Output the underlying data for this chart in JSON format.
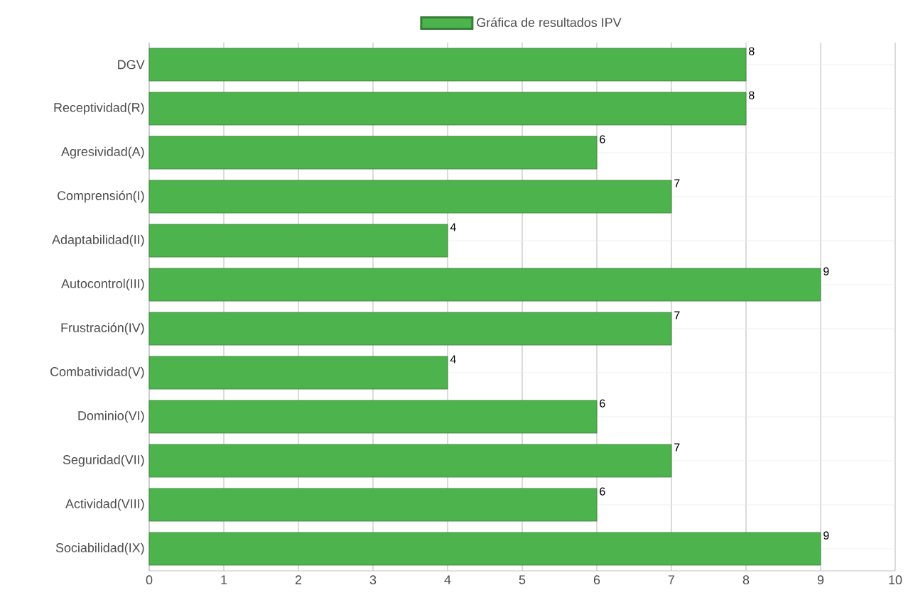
{
  "chart_data": {
    "type": "bar",
    "orientation": "horizontal",
    "categories": [
      "DGV",
      "Receptividad(R)",
      "Agresividad(A)",
      "Comprensión(I)",
      "Adaptabilidad(II)",
      "Autocontrol(III)",
      "Frustración(IV)",
      "Combatividad(V)",
      "Dominio(VI)",
      "Seguridad(VII)",
      "Actividad(VIII)",
      "Sociabilidad(IX)"
    ],
    "series": [
      {
        "name": "Gráfica de resultados IPV",
        "color": "#4db44d",
        "values": [
          8,
          8,
          6,
          7,
          4,
          9,
          7,
          4,
          6,
          7,
          6,
          9
        ]
      }
    ],
    "xlim": [
      0,
      10
    ],
    "xticks": [
      0,
      1,
      2,
      3,
      4,
      5,
      6,
      7,
      8,
      9,
      10
    ],
    "grid": true,
    "legend": "top",
    "data_labels": true
  }
}
